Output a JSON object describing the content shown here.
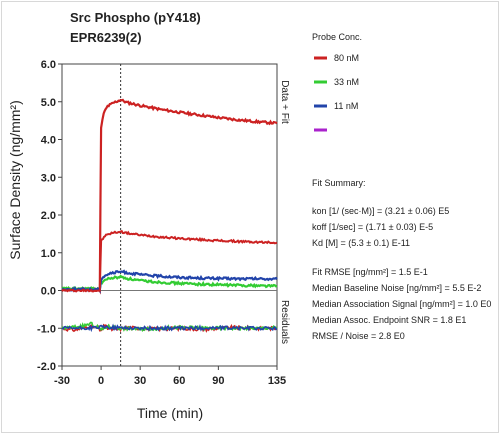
{
  "chart_data": {
    "type": "line",
    "title": "Src Phospho (pY418)",
    "subtitle": "EPR6239(2)",
    "xlabel": "Time (min)",
    "ylabel": "Surface Density (ng/mm²)",
    "upper_panel_label": "Data + Fit",
    "lower_panel_label": "Residuals",
    "xlim": [
      -30,
      135
    ],
    "ylim": [
      -2.0,
      6.0
    ],
    "x_ticks": [
      -30,
      0,
      30,
      60,
      90,
      135
    ],
    "x_tick_labels": [
      "-30",
      "0",
      "30",
      "60",
      "90",
      "135"
    ],
    "y_ticks": [
      -2.0,
      -1.0,
      0.0,
      1.0,
      2.0,
      3.0,
      4.0,
      5.0,
      6.0
    ],
    "y_tick_labels": [
      "-2.0",
      "-1.0",
      "0.0",
      "1.0",
      "2.0",
      "3.0",
      "4.0",
      "5.0",
      "6.0"
    ],
    "dissociation_start_x": 15,
    "residual_baseline_y": -1.0,
    "legend_title": "Probe Conc.",
    "series": [
      {
        "name": "80 nM",
        "color": "#cc2222",
        "x": [
          -30,
          -10,
          -1,
          0,
          2,
          5,
          10,
          15,
          20,
          30,
          45,
          60,
          75,
          90,
          105,
          120,
          135
        ],
        "y": [
          0.02,
          0.02,
          0.02,
          4.3,
          4.7,
          4.88,
          4.98,
          5.05,
          4.98,
          4.9,
          4.8,
          4.72,
          4.65,
          4.58,
          4.52,
          4.47,
          4.43
        ]
      },
      {
        "name": "33 nM",
        "color": "#33cc33",
        "x": [
          -30,
          -10,
          -1,
          0,
          3,
          8,
          15,
          20,
          30,
          45,
          60,
          75,
          90,
          105,
          120,
          135
        ],
        "y": [
          0.05,
          0.05,
          0.05,
          0.2,
          0.28,
          0.33,
          0.36,
          0.32,
          0.26,
          0.22,
          0.19,
          0.17,
          0.15,
          0.14,
          0.13,
          0.12
        ]
      },
      {
        "name": "11 nM",
        "color": "#2244aa",
        "x": [
          -30,
          -10,
          -1,
          0,
          3,
          8,
          15,
          20,
          30,
          45,
          60,
          75,
          90,
          105,
          120,
          135
        ],
        "y": [
          0.03,
          0.03,
          0.03,
          0.3,
          0.4,
          0.46,
          0.5,
          0.47,
          0.42,
          0.38,
          0.35,
          0.33,
          0.32,
          0.31,
          0.31,
          0.3
        ]
      },
      {
        "name": "",
        "color": "#aa22cc",
        "x": [],
        "y": []
      }
    ],
    "other_trace": {
      "color": "#cc2222",
      "x": [
        -30,
        -10,
        -1,
        0,
        3,
        8,
        15,
        20,
        30,
        45,
        60,
        75,
        90,
        105,
        120,
        135
      ],
      "y": [
        0.0,
        0.0,
        0.0,
        1.3,
        1.45,
        1.52,
        1.56,
        1.52,
        1.47,
        1.42,
        1.38,
        1.35,
        1.32,
        1.3,
        1.28,
        1.27
      ]
    },
    "residuals": [
      {
        "color": "#cc2222",
        "x": [
          -30,
          -20,
          -10,
          -2,
          0,
          2,
          5,
          10,
          20,
          40,
          60,
          80,
          100,
          120,
          135
        ],
        "y": [
          -1.0,
          -1.05,
          -0.95,
          -1.0,
          -1.1,
          -0.9,
          -1.0,
          -1.05,
          -0.98,
          -1.02,
          -1.0,
          -1.03,
          -0.98,
          -1.0,
          -1.0
        ]
      },
      {
        "color": "#33cc33",
        "x": [
          -30,
          -15,
          -8,
          -2,
          0,
          5,
          15,
          30,
          60,
          90,
          120,
          135
        ],
        "y": [
          -1.0,
          -0.95,
          -0.88,
          -0.98,
          -1.05,
          -0.95,
          -1.0,
          -1.02,
          -0.98,
          -1.0,
          -1.0,
          -0.98
        ]
      },
      {
        "color": "#2244aa",
        "x": [
          -30,
          -10,
          0,
          10,
          30,
          60,
          90,
          120,
          135
        ],
        "y": [
          -1.0,
          -1.0,
          -0.97,
          -0.98,
          -1.0,
          -1.0,
          -0.99,
          -1.0,
          -1.0
        ]
      }
    ]
  },
  "fit_summary": {
    "title": "Fit Summary:",
    "kon": "kon  [1/ (sec·M)]  =  (3.21 ± 0.06) E5",
    "koff": "koff  [1/sec]  =  (1.71 ± 0.03) E-5",
    "kd": "Kd  [M]  =  (5.3 ± 0.1) E-11",
    "fit_rmse": "Fit RMSE [ng/mm²]  =  1.5 E-1",
    "median_baseline_noise": "Median Baseline Noise [ng/mm²]  =  5.5 E-2",
    "median_association_signal": "Median Association Signal [ng/mm²] = 1.0 E0",
    "median_assoc_endpoint_snr": "Median Assoc. Endpoint SNR  =  1.8 E1",
    "rmse_noise": "RMSE / Noise  =  2.8 E0"
  }
}
